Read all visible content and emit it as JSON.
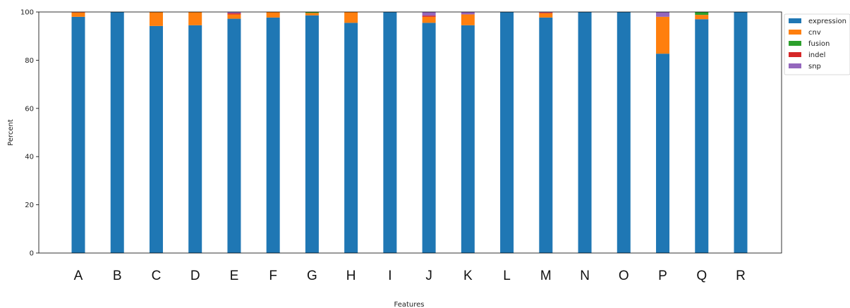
{
  "chart_data": {
    "type": "bar",
    "stacked": true,
    "xlabel": "Features",
    "ylabel": "Percent",
    "ylim": [
      0,
      100
    ],
    "yticks": [
      0,
      20,
      40,
      60,
      80,
      100
    ],
    "legend_position": "top-right",
    "categories": [
      "A",
      "B",
      "C",
      "D",
      "E",
      "F",
      "G",
      "H",
      "I",
      "J",
      "K",
      "L",
      "M",
      "N",
      "O",
      "P",
      "Q",
      "R"
    ],
    "series": [
      {
        "name": "expression",
        "color": "#1f77b4",
        "values": [
          98.0,
          100.0,
          94.2,
          94.5,
          97.2,
          97.7,
          98.6,
          95.5,
          100.0,
          95.5,
          94.5,
          100.0,
          97.7,
          100.0,
          100.0,
          82.7,
          97.0,
          100.0
        ]
      },
      {
        "name": "cnv",
        "color": "#ff7f0e",
        "values": [
          1.8,
          0.0,
          5.8,
          5.5,
          1.8,
          2.3,
          1.0,
          4.5,
          0.0,
          2.5,
          4.5,
          0.0,
          1.8,
          0.0,
          0.0,
          15.3,
          1.8,
          0.0
        ]
      },
      {
        "name": "fusion",
        "color": "#2ca02c",
        "values": [
          0.0,
          0.0,
          0.0,
          0.0,
          0.0,
          0.0,
          0.4,
          0.0,
          0.0,
          0.0,
          0.0,
          0.0,
          0.0,
          0.0,
          0.0,
          0.0,
          1.2,
          0.0
        ]
      },
      {
        "name": "indel",
        "color": "#d62728",
        "values": [
          0.2,
          0.0,
          0.0,
          0.0,
          0.5,
          0.0,
          0.0,
          0.0,
          0.0,
          0.5,
          0.0,
          0.0,
          0.3,
          0.0,
          0.0,
          0.0,
          0.0,
          0.0
        ]
      },
      {
        "name": "snp",
        "color": "#9467bd",
        "values": [
          0.0,
          0.0,
          0.0,
          0.0,
          0.5,
          0.0,
          0.0,
          0.0,
          0.0,
          1.5,
          1.0,
          0.0,
          0.2,
          0.0,
          0.0,
          2.0,
          0.0,
          0.0
        ]
      }
    ]
  }
}
